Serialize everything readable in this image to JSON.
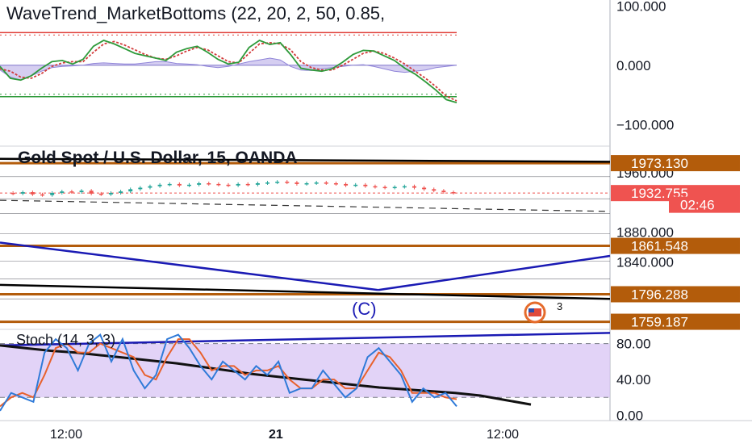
{
  "chart_data": [
    {
      "type": "line",
      "title": "WaveTrend_MarketBottoms (22, 20, 2, 50, 0.85,",
      "yticks": [
        "100.000",
        "0.000",
        "−100.000"
      ],
      "ylim": [
        -135,
        110
      ],
      "levels": {
        "overbought": 55,
        "oversold": -53,
        "zero": 0
      },
      "series": [
        {
          "name": "",
          "color": "#2e9a3a",
          "values": [
            -2,
            -22,
            -25,
            -18,
            -5,
            6,
            8,
            2,
            10,
            32,
            42,
            36,
            28,
            20,
            16,
            12,
            8,
            22,
            28,
            32,
            22,
            10,
            2,
            5,
            30,
            42,
            35,
            38,
            18,
            -5,
            -8,
            -10,
            -6,
            5,
            18,
            25,
            24,
            16,
            8,
            -5,
            -15,
            -28,
            -42,
            -58,
            -63
          ]
        },
        {
          "name": "",
          "color": "#d23a3a",
          "values": [
            -6,
            -10,
            -20,
            -22,
            -14,
            -2,
            4,
            6,
            6,
            22,
            36,
            40,
            34,
            26,
            18,
            12,
            10,
            16,
            24,
            30,
            26,
            16,
            6,
            4,
            20,
            36,
            38,
            36,
            26,
            6,
            -4,
            -8,
            -8,
            0,
            10,
            20,
            24,
            20,
            12,
            2,
            -10,
            -22,
            -36,
            -52,
            -60
          ]
        },
        {
          "name": "",
          "color": "#b2a6e6",
          "values": [
            -8,
            -20,
            -25,
            -18,
            -10,
            -4,
            -2,
            -1,
            0,
            3,
            4,
            3,
            2,
            2,
            4,
            6,
            6,
            3,
            2,
            1,
            -2,
            -4,
            -2,
            2,
            6,
            9,
            12,
            9,
            -2,
            -8,
            -9,
            -6,
            -4,
            -2,
            0,
            1,
            -2,
            -6,
            -10,
            -12,
            -10,
            -8,
            -4,
            -2,
            0
          ]
        }
      ]
    },
    {
      "type": "line",
      "title": "Gold Spot / U.S. Dollar, 15, OANDA",
      "yticks": [
        "1960.000",
        "1880.000",
        "1840.000"
      ],
      "ylim": [
        1750,
        1995
      ],
      "price_labels": [
        {
          "text": "1973.130",
          "value": 1973.13,
          "color": "#b35c0b"
        },
        {
          "text": "1932.755",
          "value": 1932.755,
          "color": "#ef5350"
        },
        {
          "text": "02:46",
          "value": 1917,
          "color": "#ef5350"
        },
        {
          "text": "1861.548",
          "value": 1861.548,
          "color": "#b35c0b"
        },
        {
          "text": "1796.288",
          "value": 1796.288,
          "color": "#b35c0b"
        },
        {
          "text": "1759.187",
          "value": 1759.187,
          "color": "#b35c0b"
        }
      ],
      "horizontal_levels": [
        1973.13,
        1861.548,
        1796.288,
        1759.187
      ],
      "trendlines": [
        {
          "color": "#000000",
          "from": [
            0,
            1979
          ],
          "to": [
            1,
            1975
          ]
        },
        {
          "color": "#1a1ab4",
          "from": [
            0,
            1866
          ],
          "to": [
            0.62,
            1802
          ]
        },
        {
          "color": "#1a1ab4",
          "from": [
            0.62,
            1802
          ],
          "to": [
            1,
            1848
          ]
        },
        {
          "color": "#000000",
          "from": [
            0,
            1809
          ],
          "to": [
            1,
            1790
          ]
        },
        {
          "color": "#333333",
          "from": [
            0,
            1923
          ],
          "to": [
            1,
            1908
          ],
          "dashed": true
        }
      ],
      "price_path": [
        1933,
        1932,
        1934,
        1931,
        1930,
        1933,
        1935,
        1934,
        1936,
        1932,
        1931,
        1933,
        1935,
        1938,
        1940,
        1942,
        1944,
        1945,
        1943,
        1944,
        1946,
        1945,
        1944,
        1943,
        1945,
        1944,
        1946,
        1947,
        1948,
        1947,
        1945,
        1946,
        1947,
        1946,
        1945,
        1943,
        1944,
        1942,
        1941,
        1940,
        1941,
        1942,
        1940,
        1938,
        1936,
        1934,
        1933
      ],
      "annotations": [
        {
          "text": "(C)",
          "color": "#1a1ab4"
        },
        {
          "text": "3",
          "color": "#111111"
        }
      ]
    },
    {
      "type": "line",
      "title": "Stoch (14, 3, 3)",
      "yticks": [
        "80.00",
        "40.00",
        "0.00"
      ],
      "ylim": [
        -5,
        95
      ],
      "bands": {
        "upper": 80,
        "lower": 20
      },
      "series": [
        {
          "name": "",
          "color": "#2f7ad8",
          "values": [
            5,
            25,
            20,
            15,
            70,
            85,
            75,
            50,
            80,
            90,
            60,
            85,
            50,
            30,
            45,
            85,
            90,
            75,
            55,
            40,
            60,
            50,
            40,
            55,
            45,
            60,
            25,
            30,
            30,
            50,
            35,
            20,
            30,
            65,
            75,
            60,
            45,
            15,
            30,
            20,
            25,
            10
          ]
        },
        {
          "name": "",
          "color": "#e8612c",
          "values": [
            10,
            20,
            25,
            20,
            45,
            75,
            80,
            70,
            70,
            80,
            75,
            70,
            65,
            45,
            40,
            65,
            85,
            85,
            70,
            50,
            55,
            55,
            45,
            50,
            50,
            55,
            40,
            30,
            30,
            40,
            40,
            30,
            30,
            50,
            70,
            65,
            50,
            25,
            25,
            25,
            20,
            18
          ]
        },
        {
          "name": "",
          "color": "#111111",
          "values": [
            78,
            75,
            72,
            70,
            67,
            64,
            61,
            58,
            54,
            50,
            46,
            43,
            40,
            37,
            34,
            31,
            29,
            27,
            25,
            22,
            17,
            12
          ]
        }
      ],
      "trendline": {
        "color": "#1a1ab4",
        "from": [
          0,
          78
        ],
        "to": [
          1,
          92
        ]
      }
    }
  ],
  "time_axis": {
    "labels": [
      "12:00",
      "21",
      "12:00"
    ]
  }
}
